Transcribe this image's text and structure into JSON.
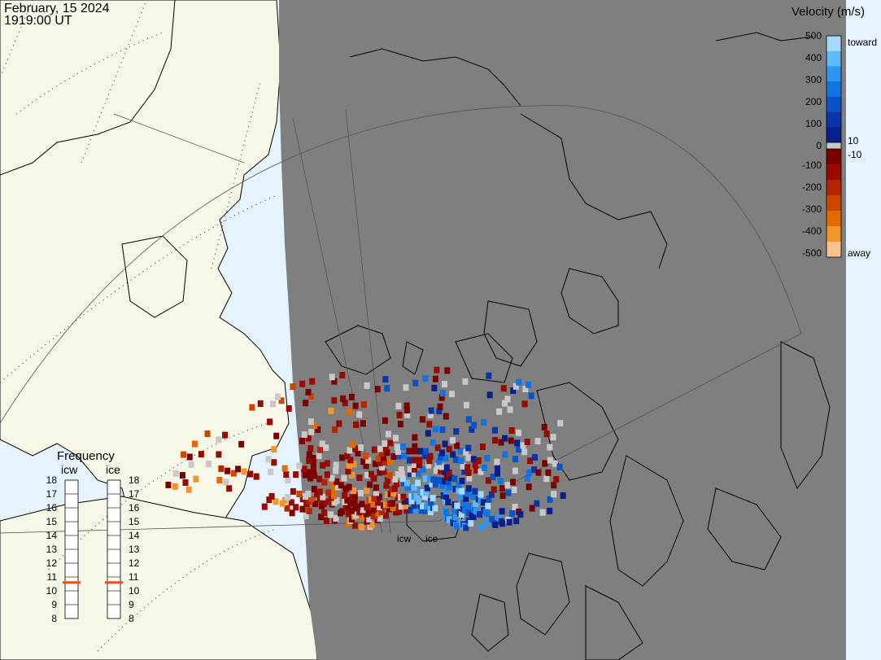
{
  "header": {
    "date": "February, 15 2024",
    "time": "1919:00 UT"
  },
  "colorbar": {
    "title": "Velocity (m/s)",
    "upper_ticks": [
      "500",
      "400",
      "300",
      "200",
      "100",
      "0"
    ],
    "lower_ticks": [
      "-100",
      "-200",
      "-300",
      "-400",
      "-500"
    ],
    "label_10": "10",
    "label_neg10": "-10",
    "toward_label": "toward",
    "away_label": "away",
    "colors": {
      "toward": [
        "#0b1f8a",
        "#0a35a8",
        "#0b52c8",
        "#1174e0",
        "#2c96f0",
        "#63b8f6",
        "#a8d8fb"
      ],
      "away": [
        "#7a0000",
        "#960a00",
        "#b42400",
        "#cc4600",
        "#e26a00",
        "#f3952c",
        "#fbc290"
      ]
    }
  },
  "frequency_panel": {
    "title": "Frequency",
    "columns": [
      "icw",
      "ice"
    ],
    "ticks": [
      "18",
      "17",
      "16",
      "15",
      "14",
      "13",
      "12",
      "11",
      "10",
      "9",
      "8"
    ],
    "icw_frequency_mhz": 10.6,
    "ice_frequency_mhz": 10.6,
    "marker_color": "#e8501a"
  },
  "radar_sites": {
    "icw_label": "icw",
    "ice_label": "ice"
  },
  "map_colors": {
    "land": "#f7f7e8",
    "sea": "#e4f3fd",
    "night": "#7f7f7f",
    "coastline": "#000000",
    "low_velocity_gray": "#c8c8c8"
  }
}
